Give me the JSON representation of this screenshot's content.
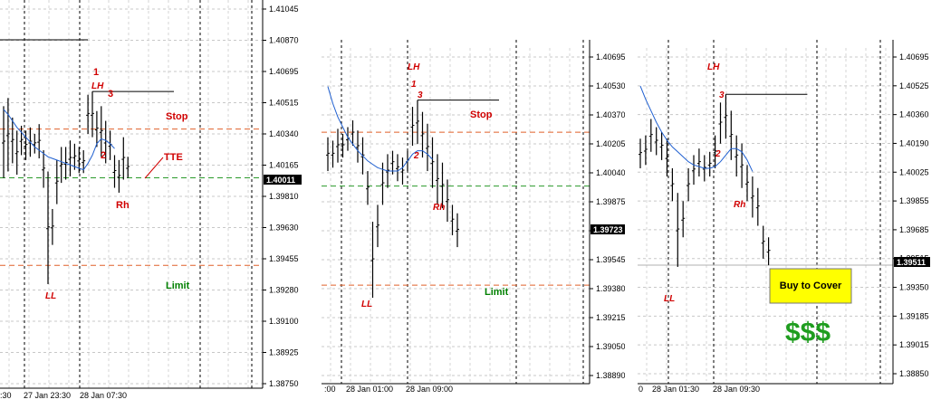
{
  "chart_data": [
    {
      "type": "candlestick",
      "x_ticks": [
        ":30",
        "27 Jan 23:30",
        "28 Jan 07:30"
      ],
      "y_ticks": [
        "1.41045",
        "1.40870",
        "1.40695",
        "1.40515",
        "1.40340",
        "1.40165",
        "1.39810",
        "1.39630",
        "1.39455",
        "1.39280",
        "1.39100",
        "1.38925",
        "1.38750"
      ],
      "current_price": "1.40011",
      "ylim": [
        1.3875,
        1.41045
      ],
      "annotations": {
        "p1": "1",
        "lh": "LH",
        "p3": "3",
        "p2": "2",
        "stop": "Stop",
        "tte": "TTE",
        "rh": "Rh",
        "ll": "LL",
        "limit": "Limit"
      },
      "levels": {
        "stop": 1.4031,
        "entry": 1.40011,
        "limit": 1.39475
      },
      "bars": [
        [
          1.4045,
          1.4001
        ],
        [
          1.405,
          1.4005
        ],
        [
          1.4038,
          1.401
        ],
        [
          1.403,
          1.4003
        ],
        [
          1.4033,
          1.4015
        ],
        [
          1.403,
          1.4012
        ],
        [
          1.4032,
          1.4014
        ],
        [
          1.4028,
          1.4016
        ],
        [
          1.4034,
          1.4013
        ],
        [
          1.4018,
          1.3995
        ],
        [
          1.4005,
          1.3936
        ],
        [
          1.3982,
          1.396
        ],
        [
          1.4012,
          1.3985
        ],
        [
          1.402,
          1.3998
        ],
        [
          1.402,
          1.4
        ],
        [
          1.4024,
          1.4002
        ],
        [
          1.4022,
          1.4006
        ],
        [
          1.402,
          1.4004
        ],
        [
          1.4018,
          1.4004
        ],
        [
          1.4052,
          1.4028
        ],
        [
          1.4054,
          1.4026
        ],
        [
          1.4042,
          1.402
        ],
        [
          1.4045,
          1.4014
        ],
        [
          1.4036,
          1.401
        ],
        [
          1.403,
          1.4012
        ],
        [
          1.4015,
          1.3995
        ],
        [
          1.4012,
          1.3992
        ],
        [
          1.4026,
          1.4
        ],
        [
          1.4014,
          1.4001
        ]
      ],
      "ma": [
        1.4043,
        1.404,
        1.4036,
        1.4032,
        1.4029,
        1.4026,
        1.4023,
        1.402,
        1.4018,
        1.4016,
        1.4014,
        1.4013,
        1.4012,
        1.4011,
        1.401,
        1.4009,
        1.4008,
        1.4007,
        1.4006,
        1.401,
        1.4015,
        1.4022,
        1.4025,
        1.4024,
        1.4022,
        1.4019
      ]
    },
    {
      "type": "candlestick",
      "x_ticks": [
        ":00",
        "28 Jan 01:00",
        "28 Jan 09:00"
      ],
      "y_ticks": [
        "1.40695",
        "1.40530",
        "1.40370",
        "1.40205",
        "1.40040",
        "1.39875",
        "1.39710",
        "1.39545",
        "1.39380",
        "1.39215",
        "1.39050",
        "1.38890"
      ],
      "current_price": "1.39723",
      "ylim": [
        1.3889,
        1.40775
      ],
      "annotations": {
        "lh": "LH",
        "p1": "1",
        "p3": "3",
        "p2": "2",
        "stop": "Stop",
        "rh": "Rh",
        "ll": "LL",
        "limit": "Limit"
      },
      "levels": {
        "stop": 1.4033,
        "entry": 1.40011,
        "limit": 1.39425
      },
      "bars": [
        [
          1.403,
          1.401
        ],
        [
          1.4028,
          1.4012
        ],
        [
          1.4035,
          1.4015
        ],
        [
          1.4032,
          1.4018
        ],
        [
          1.4036,
          1.4022
        ],
        [
          1.404,
          1.4025
        ],
        [
          1.4034,
          1.4015
        ],
        [
          1.403,
          1.4008
        ],
        [
          1.401,
          1.399
        ],
        [
          1.398,
          1.3935
        ],
        [
          1.399,
          1.3965
        ],
        [
          1.4015,
          1.399
        ],
        [
          1.402,
          1.4
        ],
        [
          1.4022,
          1.4008
        ],
        [
          1.402,
          1.4004
        ],
        [
          1.4018,
          1.4002
        ],
        [
          1.4022,
          1.401
        ],
        [
          1.4048,
          1.4025
        ],
        [
          1.4052,
          1.4026
        ],
        [
          1.4045,
          1.4018
        ],
        [
          1.4038,
          1.401
        ],
        [
          1.403,
          1.4
        ],
        [
          1.402,
          1.399
        ],
        [
          1.4015,
          1.3988
        ],
        [
          1.4005,
          1.398
        ],
        [
          1.399,
          1.3972
        ],
        [
          1.3985,
          1.3965
        ]
      ],
      "ma": [
        1.406,
        1.405,
        1.4042,
        1.4036,
        1.403,
        1.4026,
        1.4022,
        1.4019,
        1.4016,
        1.4014,
        1.4012,
        1.4011,
        1.401,
        1.401,
        1.401,
        1.4012,
        1.4016,
        1.402,
        1.4022,
        1.4022,
        1.402,
        1.4017
      ]
    },
    {
      "type": "candlestick",
      "x_ticks": [
        "0",
        "28 Jan 01:30",
        "28 Jan 09:30"
      ],
      "y_ticks": [
        "1.40695",
        "1.40525",
        "1.40360",
        "1.40190",
        "1.40025",
        "1.39855",
        "1.39685",
        "1.39515",
        "1.39350",
        "1.39185",
        "1.39015",
        "1.38850"
      ],
      "current_price": "1.39511",
      "ylim": [
        1.3885,
        1.40777
      ],
      "annotations": {
        "lh": "LH",
        "p3": "3",
        "p2": "2",
        "rh": "Rh",
        "ll": "LL",
        "buy": "Buy to Cover",
        "dollars": "$$$"
      },
      "levels": {
        "current": 1.39511
      },
      "bars": [
        [
          1.4028,
          1.401
        ],
        [
          1.403,
          1.4012
        ],
        [
          1.404,
          1.402
        ],
        [
          1.4035,
          1.4018
        ],
        [
          1.4032,
          1.4015
        ],
        [
          1.4028,
          1.4005
        ],
        [
          1.401,
          1.399
        ],
        [
          1.3995,
          1.395
        ],
        [
          1.399,
          1.3968
        ],
        [
          1.401,
          1.399
        ],
        [
          1.4018,
          1.4
        ],
        [
          1.4022,
          1.4005
        ],
        [
          1.4018,
          1.4002
        ],
        [
          1.402,
          1.4005
        ],
        [
          1.403,
          1.401
        ],
        [
          1.405,
          1.4025
        ],
        [
          1.4055,
          1.4028
        ],
        [
          1.4045,
          1.4015
        ],
        [
          1.403,
          1.4005
        ],
        [
          1.4025,
          1.3998
        ],
        [
          1.4012,
          1.399
        ],
        [
          1.4005,
          1.398
        ],
        [
          1.3998,
          1.3975
        ],
        [
          1.3975,
          1.3955
        ],
        [
          1.3968,
          1.3951
        ]
      ],
      "ma": [
        1.406,
        1.4052,
        1.4045,
        1.4038,
        1.4032,
        1.4027,
        1.4023,
        1.402,
        1.4017,
        1.4014,
        1.4012,
        1.4011,
        1.401,
        1.401,
        1.4011,
        1.4014,
        1.4018,
        1.4022,
        1.4022,
        1.402,
        1.4015,
        1.4008
      ]
    }
  ]
}
